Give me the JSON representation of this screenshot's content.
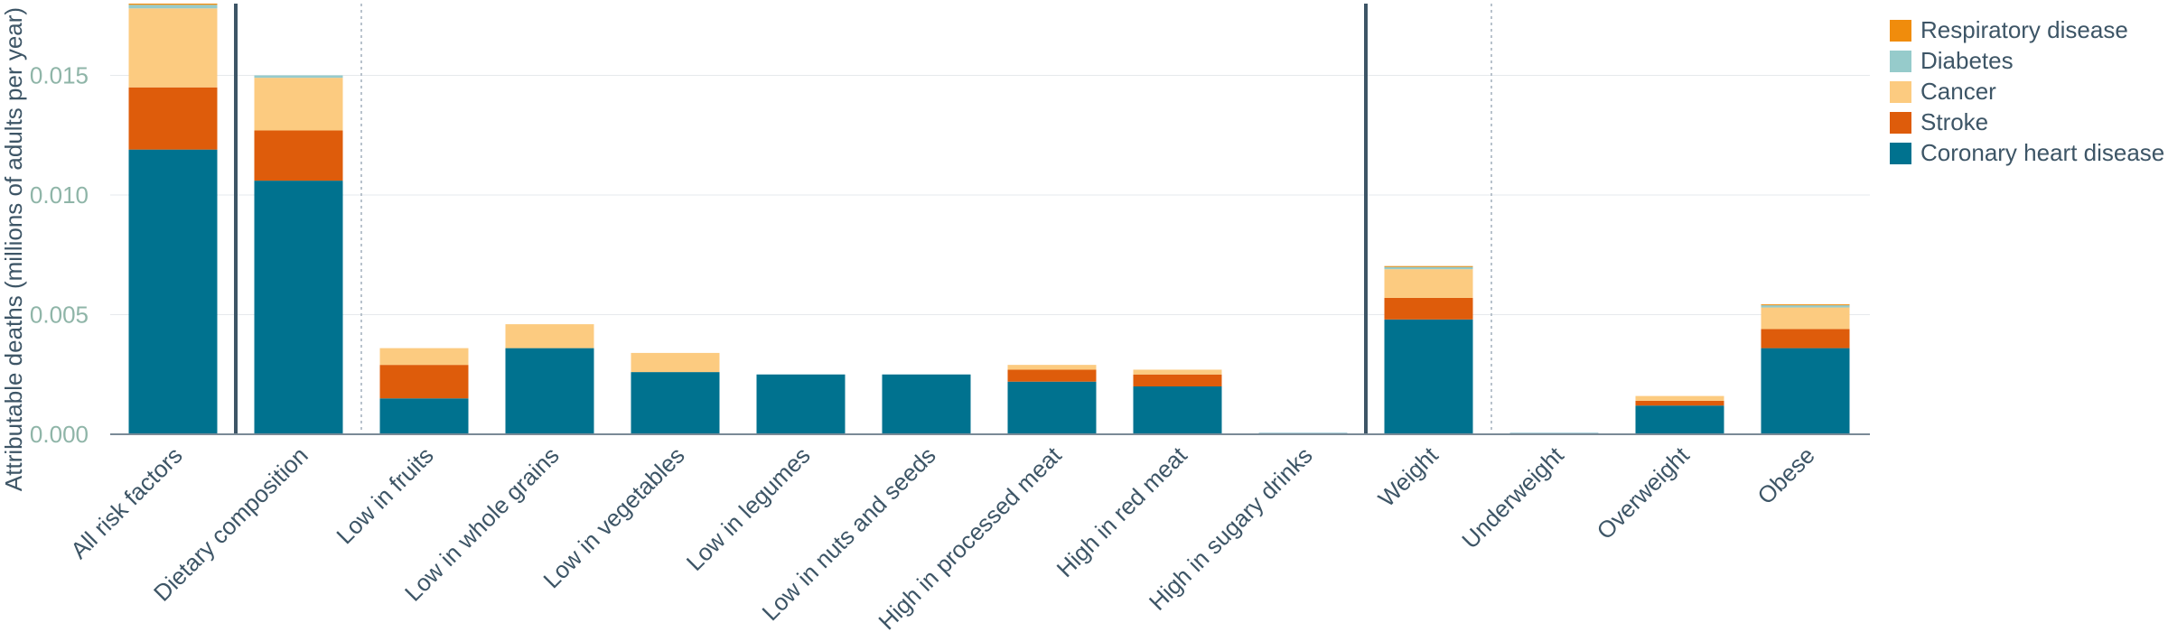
{
  "chart_data": {
    "type": "bar",
    "stacked": true,
    "ylabel": "Attributable deaths (millions of adults per year)",
    "xlabel": "",
    "ylim": [
      0,
      0.018
    ],
    "yticks": [
      "0.000",
      "0.005",
      "0.010",
      "0.015"
    ],
    "ytick_values": [
      0,
      0.005,
      0.01,
      0.015
    ],
    "grid": true,
    "legend_position": "top-right",
    "categories": [
      "All risk factors",
      "Dietary composition",
      "Low in fruits",
      "Low in whole grains",
      "Low in vegetables",
      "Low in legumes",
      "Low in nuts and seeds",
      "High in processed meat",
      "High in red meat",
      "High in sugary drinks",
      "Weight",
      "Underweight",
      "Overweight",
      "Obese"
    ],
    "series": [
      {
        "name": "Coronary heart disease",
        "color": "#00728f",
        "values": [
          0.0119,
          0.0106,
          0.0015,
          0.0036,
          0.0026,
          0.0025,
          0.0025,
          0.0022,
          0.002,
          5e-05,
          0.0048,
          5e-05,
          0.0012,
          0.0036
        ]
      },
      {
        "name": "Stroke",
        "color": "#de5c0b",
        "values": [
          0.0026,
          0.0021,
          0.0014,
          0.0,
          0.0,
          0.0,
          0.0,
          0.0005,
          0.0005,
          0.0,
          0.0009,
          0.0,
          0.0002,
          0.0008
        ]
      },
      {
        "name": "Cancer",
        "color": "#fccb80",
        "values": [
          0.0033,
          0.0022,
          0.0007,
          0.001,
          0.0008,
          0.0,
          0.0,
          0.0002,
          0.0002,
          0.0,
          0.0012,
          0.0,
          0.0002,
          0.0009
        ]
      },
      {
        "name": "Diabetes",
        "color": "#96cbcb",
        "values": [
          0.00015,
          0.0001,
          0.0,
          0.0,
          0.0,
          0.0,
          0.0,
          0.0,
          0.0,
          0.0,
          0.0001,
          0.0,
          0.0,
          0.0001
        ]
      },
      {
        "name": "Respiratory disease",
        "color": "#f08c0c",
        "values": [
          5e-05,
          0.0,
          0.0,
          0.0,
          0.0,
          0.0,
          0.0,
          0.0,
          0.0,
          0.0,
          3e-05,
          0.0,
          0.0,
          3e-05
        ]
      }
    ],
    "legend_order": [
      "Respiratory disease",
      "Diabetes",
      "Cancer",
      "Stroke",
      "Coronary heart disease"
    ],
    "separators": [
      {
        "after_index": 0,
        "style": "solid"
      },
      {
        "after_index": 1,
        "style": "dotted"
      },
      {
        "after_index": 9,
        "style": "solid"
      },
      {
        "after_index": 10,
        "style": "dotted"
      }
    ],
    "colors": {
      "axis": "#7a8a96",
      "grid": "#e6e9ec",
      "separator_solid": "#3d5566",
      "separator_dotted": "#b8c2cc"
    }
  }
}
